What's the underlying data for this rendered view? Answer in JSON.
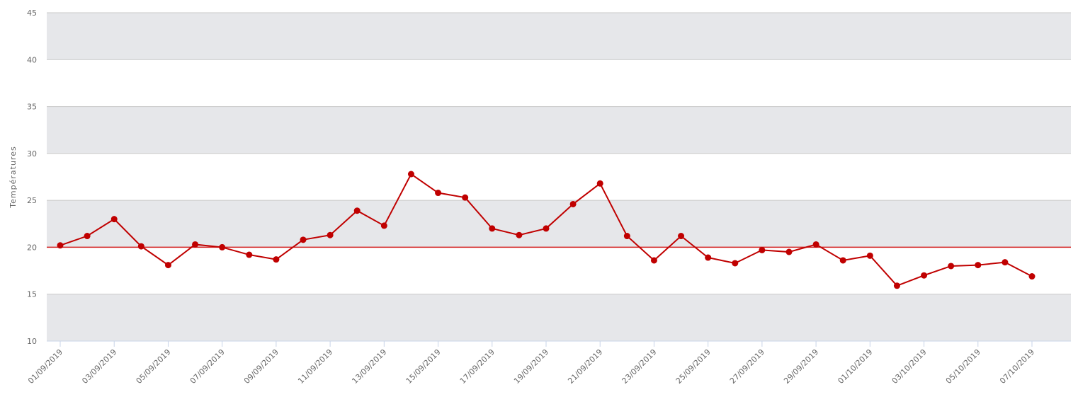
{
  "chart_data": {
    "type": "line",
    "y_label": "Températures",
    "categories": [
      "01/09/2019",
      null,
      "03/09/2019",
      null,
      "05/09/2019",
      null,
      "07/09/2019",
      null,
      "09/09/2019",
      null,
      "11/09/2019",
      null,
      "13/09/2019",
      null,
      "15/09/2019",
      null,
      "17/09/2019",
      null,
      "19/09/2019",
      null,
      "21/09/2019",
      null,
      "23/09/2019",
      null,
      "25/09/2019",
      null,
      "27/09/2019",
      null,
      "29/09/2019",
      null,
      "01/10/2019",
      null,
      "03/10/2019",
      null,
      "05/10/2019",
      null,
      "07/10/2019"
    ],
    "series": [
      {
        "color": "#c00000",
        "values": [
          20.2,
          21.2,
          23.0,
          20.1,
          18.1,
          20.3,
          20.0,
          19.2,
          18.7,
          20.8,
          21.3,
          23.9,
          22.3,
          27.8,
          25.8,
          25.3,
          22.0,
          21.3,
          22.0,
          24.6,
          26.8,
          21.2,
          18.6,
          21.2,
          18.9,
          18.3,
          19.7,
          19.5,
          20.3,
          18.6,
          19.1,
          15.9,
          17.0,
          18.0,
          18.1,
          18.4,
          16.9
        ]
      }
    ],
    "reference_line": {
      "value": 20,
      "color": "#d42020"
    },
    "ylim": [
      10,
      45
    ],
    "yticks": [
      10,
      15,
      20,
      25,
      30,
      35,
      40,
      45
    ],
    "bands": true,
    "band_color": "#e6e7ea",
    "grid": true
  }
}
